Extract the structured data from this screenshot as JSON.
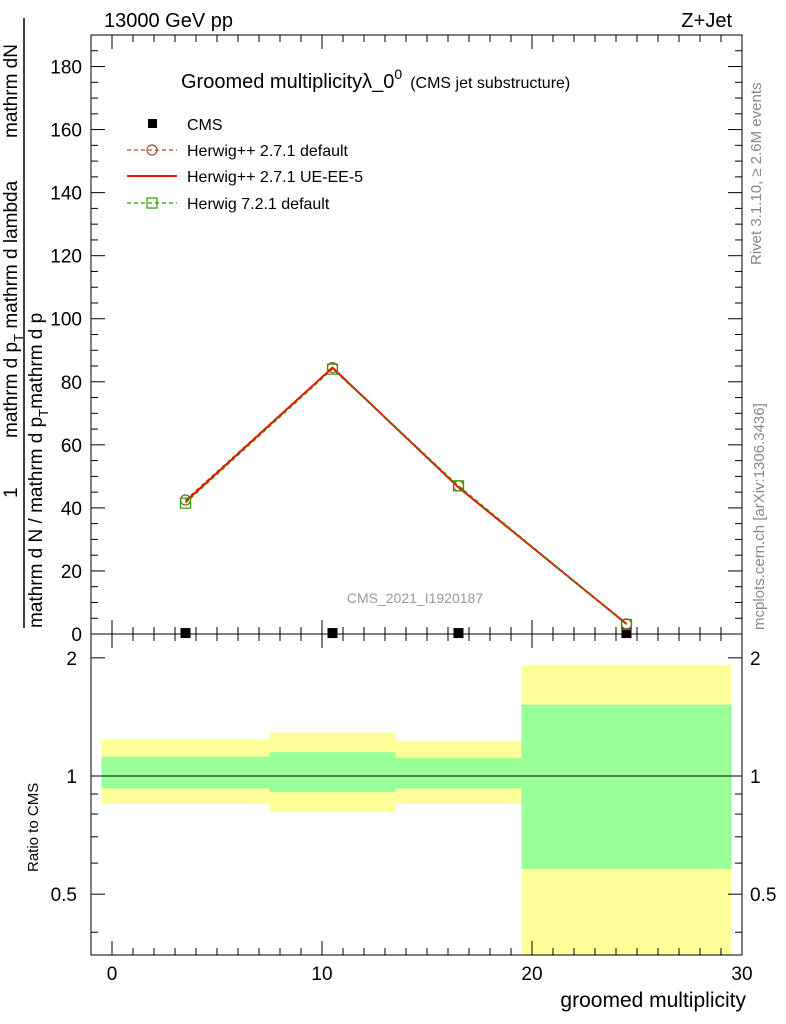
{
  "header": {
    "left": "13000 GeV pp",
    "right": "Z+Jet"
  },
  "side": {
    "rivet": "Rivet 3.1.10, ≥ 2.6M events",
    "mcplots": "mcplots.cern.ch [arXiv:1306.3436]"
  },
  "chart_data": [
    {
      "type": "line",
      "title": "Groomed multiplicityλ_0",
      "title_sup": "0",
      "subtitle": "(CMS jet substructure)",
      "ylabel_lines": [
        "mathrm dN",
        "mathrm d p_T mathrm d p_T mathrm d lambda",
        "1",
        "mathrm d N / mathrm d p_T mathrm d p_T"
      ],
      "ylabel_num": "1",
      "ylabel_left": "mathrm d N / mathrm d p",
      "ylabel_left_sub": "T",
      "ylabel_left_tail": "mathrm d p",
      "ylabel_right": "mathrm dN",
      "ylabel_right_pre": "mathrm d p",
      "ylabel_right_sub": "T",
      "ylabel_right_tail": " mathrm d lambda",
      "analysis_id": "CMS_2021_I1920187",
      "xlim": [
        -1,
        30
      ],
      "ylim": [
        0,
        190
      ],
      "yticks": [
        0,
        20,
        40,
        60,
        80,
        100,
        120,
        140,
        160,
        180
      ],
      "ytick_labels": [
        "0",
        "20",
        "40",
        "60",
        "80",
        "100",
        "120",
        "140",
        "160",
        "180"
      ],
      "legend_position": "top-left",
      "series": [
        {
          "name": "CMS",
          "color": "#000000",
          "marker": "square-filled",
          "x": [
            3.5,
            10.5,
            16.5,
            24.5
          ],
          "y": [
            0.3,
            0.3,
            0.3,
            0.3
          ]
        },
        {
          "name": "Herwig++ 2.7.1 default",
          "color": "#a0522d",
          "marker": "circle-open",
          "dash": "dashed",
          "x": [
            3.5,
            10.5,
            16.5,
            24.5
          ],
          "y": [
            42.5,
            84.5,
            47,
            3.2
          ]
        },
        {
          "name": "Herwig++ 2.7.1 UE-EE-5",
          "color": "#ee1100",
          "marker": "none",
          "dash": "solid",
          "x": [
            3.5,
            10.5,
            16.5,
            24.5
          ],
          "y": [
            42,
            84.5,
            46.5,
            3.2
          ]
        },
        {
          "name": "Herwig 7.2.1 default",
          "color": "#339900",
          "marker": "square-open",
          "dash": "dashed",
          "x": [
            3.5,
            10.5,
            16.5,
            24.5
          ],
          "y": [
            41.5,
            84,
            47,
            3
          ]
        }
      ]
    },
    {
      "type": "area",
      "ylabel": "Ratio to CMS",
      "xlabel": "groomed multiplicity",
      "xlim": [
        -1,
        30
      ],
      "ylim": [
        0.35,
        2.3
      ],
      "log_y": true,
      "xticks": [
        0,
        10,
        20,
        30
      ],
      "xtick_labels": [
        "0",
        "10",
        "20",
        "30"
      ],
      "yticks": [
        0.5,
        1,
        2
      ],
      "ytick_labels": [
        "0.5",
        "1",
        "2"
      ],
      "bins": [
        {
          "x0": -0.5,
          "x1": 7.5,
          "yellow": [
            0.85,
            1.24
          ],
          "green": [
            0.93,
            1.12
          ]
        },
        {
          "x0": 7.5,
          "x1": 13.5,
          "yellow": [
            0.81,
            1.29
          ],
          "green": [
            0.91,
            1.15
          ]
        },
        {
          "x0": 13.5,
          "x1": 19.5,
          "yellow": [
            0.85,
            1.23
          ],
          "green": [
            0.93,
            1.11
          ]
        },
        {
          "x0": 19.5,
          "x1": 29.5,
          "yellow": [
            0.33,
            1.92
          ],
          "green": [
            0.58,
            1.52
          ]
        }
      ],
      "colors": {
        "yellow": "#ffff99",
        "green": "#99ff99"
      }
    }
  ]
}
